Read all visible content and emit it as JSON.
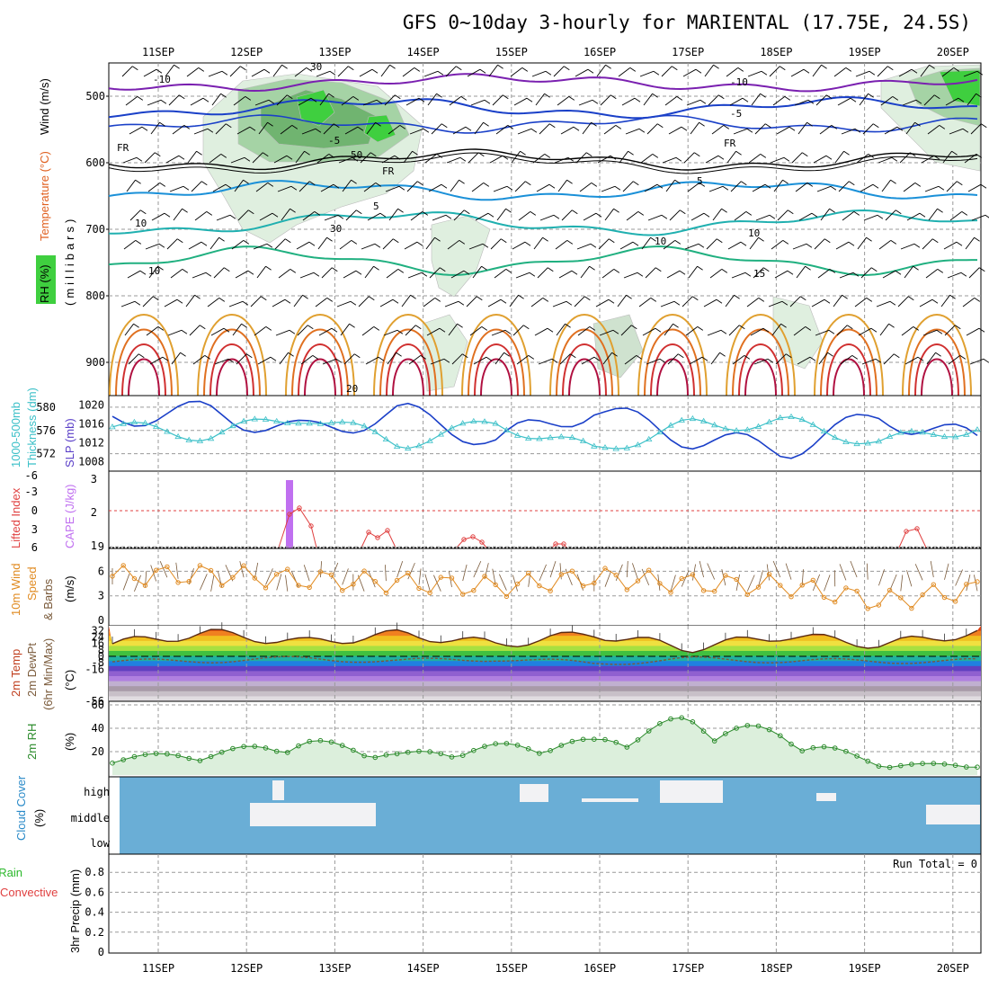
{
  "title": "GFS 0~10day 3-hourly for MARIENTAL (17.75E, 24.5S)",
  "days": [
    "11SEP",
    "12SEP",
    "13SEP",
    "14SEP",
    "15SEP",
    "16SEP",
    "17SEP",
    "18SEP",
    "19SEP",
    "20SEP"
  ],
  "colors": {
    "grid": "#9a9a9a",
    "rh_fill": "#3fcf3f",
    "thickness": "#3cc0c8",
    "slp": "#1a3fc8",
    "cape": "#c070f0",
    "lifted": "#e04040",
    "wind": "#e08a20",
    "temp": "#b03020",
    "dewpt": "#7a5a3a",
    "rh2m": "#2a8a2a",
    "cloud_bg": "#6aaed6",
    "cloud_fill": "#f2f2f4"
  },
  "panels": {
    "upper": {
      "labels": [
        "Wind (m/s)",
        "Temperature (°C)",
        "RH (%)",
        "(millibars)"
      ],
      "ticks": [
        "500",
        "600",
        "700",
        "800",
        "900"
      ],
      "contour_labels": [
        "-10",
        "-10",
        "-5",
        "-5",
        "FR",
        "FR",
        "FR",
        "5",
        "5",
        "10",
        "10",
        "10",
        "15",
        "20",
        "30",
        "30",
        "50",
        "10"
      ]
    },
    "thickness": {
      "labels": [
        "1000-500mb",
        "Thickness (dm)",
        "SLP (mb)"
      ],
      "left_ticks": [
        "580",
        "576",
        "572"
      ],
      "right_ticks": [
        "1020",
        "1016",
        "1012",
        "1008"
      ]
    },
    "cape": {
      "labels": [
        "Lifted Index",
        "CAPE (J/kg)"
      ],
      "left_ticks": [
        "-6",
        "-3",
        "0",
        "3",
        "6"
      ],
      "right_ticks": [
        "3",
        "2",
        "1"
      ]
    },
    "wind": {
      "labels": [
        "10m Wind",
        "Speed",
        "& Barbs",
        "(m/s)"
      ],
      "ticks": [
        "9",
        "6",
        "3",
        "0"
      ]
    },
    "temp": {
      "labels": [
        "2m Temp",
        "2m DewPt",
        "(6hr Min/Max)",
        "(°C)"
      ],
      "ticks": [
        "32",
        "24",
        "16",
        "8",
        "0",
        "-8",
        "-16",
        "-56"
      ]
    },
    "rh": {
      "labels": [
        "2m RH",
        "(%)"
      ],
      "ticks": [
        "60",
        "40",
        "20"
      ]
    },
    "cloud": {
      "labels": [
        "Cloud Cover",
        "(%)"
      ],
      "levels": [
        "high",
        "middle",
        "low"
      ]
    },
    "precip": {
      "labels": [
        "Total / Rain",
        "Convective",
        "3hr Precip (mm)"
      ],
      "ticks": [
        "0.8",
        "0.6",
        "0.4",
        "0.2",
        "0"
      ],
      "run_total": "Run Total = 0"
    }
  },
  "chart_data": [
    {
      "type": "line",
      "title": "1000-500mb Thickness (dm)",
      "ylabel": "1000-500mb Thickness (dm)",
      "ylim": [
        569,
        582
      ],
      "x": [
        "11SEP",
        "12SEP",
        "13SEP",
        "14SEP",
        "15SEP",
        "16SEP",
        "17SEP",
        "18SEP",
        "19SEP",
        "20SEP"
      ],
      "series": [
        {
          "name": "1000-500mb Thickness (dm)",
          "values": [
            576.6,
            575.2,
            578.6,
            573.8,
            577.3,
            572.6,
            576.9,
            577.4,
            573.9,
            576.7
          ]
        }
      ]
    },
    {
      "type": "line",
      "title": "SLP (mb)",
      "ylabel": "SLP (mb)",
      "ylim": [
        1006,
        1022
      ],
      "x": [
        "11SEP",
        "12SEP",
        "13SEP",
        "14SEP",
        "15SEP",
        "16SEP",
        "17SEP",
        "18SEP",
        "19SEP",
        "20SEP"
      ],
      "series": [
        {
          "name": "SLP (mb)",
          "values": [
            1017.6,
            1018.6,
            1014.2,
            1018.5,
            1012.4,
            1019.2,
            1013.0,
            1010.6,
            1017.6,
            1012.4
          ]
        }
      ]
    },
    {
      "type": "line",
      "title": "10m Wind Speed (m/s)",
      "ylabel": "(m/s)",
      "ylim": [
        0,
        11
      ],
      "x": [
        "11SEP",
        "12SEP",
        "13SEP",
        "14SEP",
        "15SEP",
        "16SEP",
        "17SEP",
        "18SEP",
        "19SEP",
        "20SEP"
      ],
      "series": [
        {
          "name": "10m Wind Speed",
          "values": [
            5.4,
            5.6,
            5.0,
            4.6,
            4.1,
            5.3,
            4.5,
            4.3,
            2.3,
            3.8
          ]
        }
      ]
    },
    {
      "type": "area",
      "title": "2m Temp",
      "ylabel": "(°C)",
      "ylim": [
        -56,
        38
      ],
      "x": [
        "11SEP",
        "12SEP",
        "13SEP",
        "14SEP",
        "15SEP",
        "16SEP",
        "17SEP",
        "18SEP",
        "19SEP",
        "20SEP"
      ],
      "series": [
        {
          "name": "2m Temp",
          "values": [
            15.6,
            29.0,
            17.0,
            27.8,
            15.0,
            28.0,
            10.0,
            26.0,
            14.3,
            29.9
          ]
        },
        {
          "name": "2m DewPt",
          "values": [
            -6.9,
            -5.3,
            -2.8,
            -6.0,
            -3.0,
            -8.9,
            -3.5,
            -5.6,
            -6.1,
            -6.0
          ]
        }
      ]
    },
    {
      "type": "area",
      "title": "2m RH",
      "ylabel": "(%)",
      "ylim": [
        0,
        65
      ],
      "x": [
        "11SEP",
        "12SEP",
        "13SEP",
        "14SEP",
        "15SEP",
        "16SEP",
        "17SEP",
        "18SEP",
        "19SEP",
        "20SEP"
      ],
      "series": [
        {
          "name": "2m RH",
          "values": [
            17,
            20,
            32,
            19,
            27,
            31,
            52,
            38,
            10,
            10
          ]
        }
      ]
    },
    {
      "type": "bar",
      "title": "3hr Precip (mm)",
      "ylabel": "3hr Precip (mm)",
      "ylim": [
        0,
        1
      ],
      "categories": [
        "11SEP",
        "12SEP",
        "13SEP",
        "14SEP",
        "15SEP",
        "16SEP",
        "17SEP",
        "18SEP",
        "19SEP",
        "20SEP"
      ],
      "values": [
        0,
        0,
        0,
        0,
        0,
        0,
        0,
        0,
        0,
        0
      ]
    }
  ]
}
